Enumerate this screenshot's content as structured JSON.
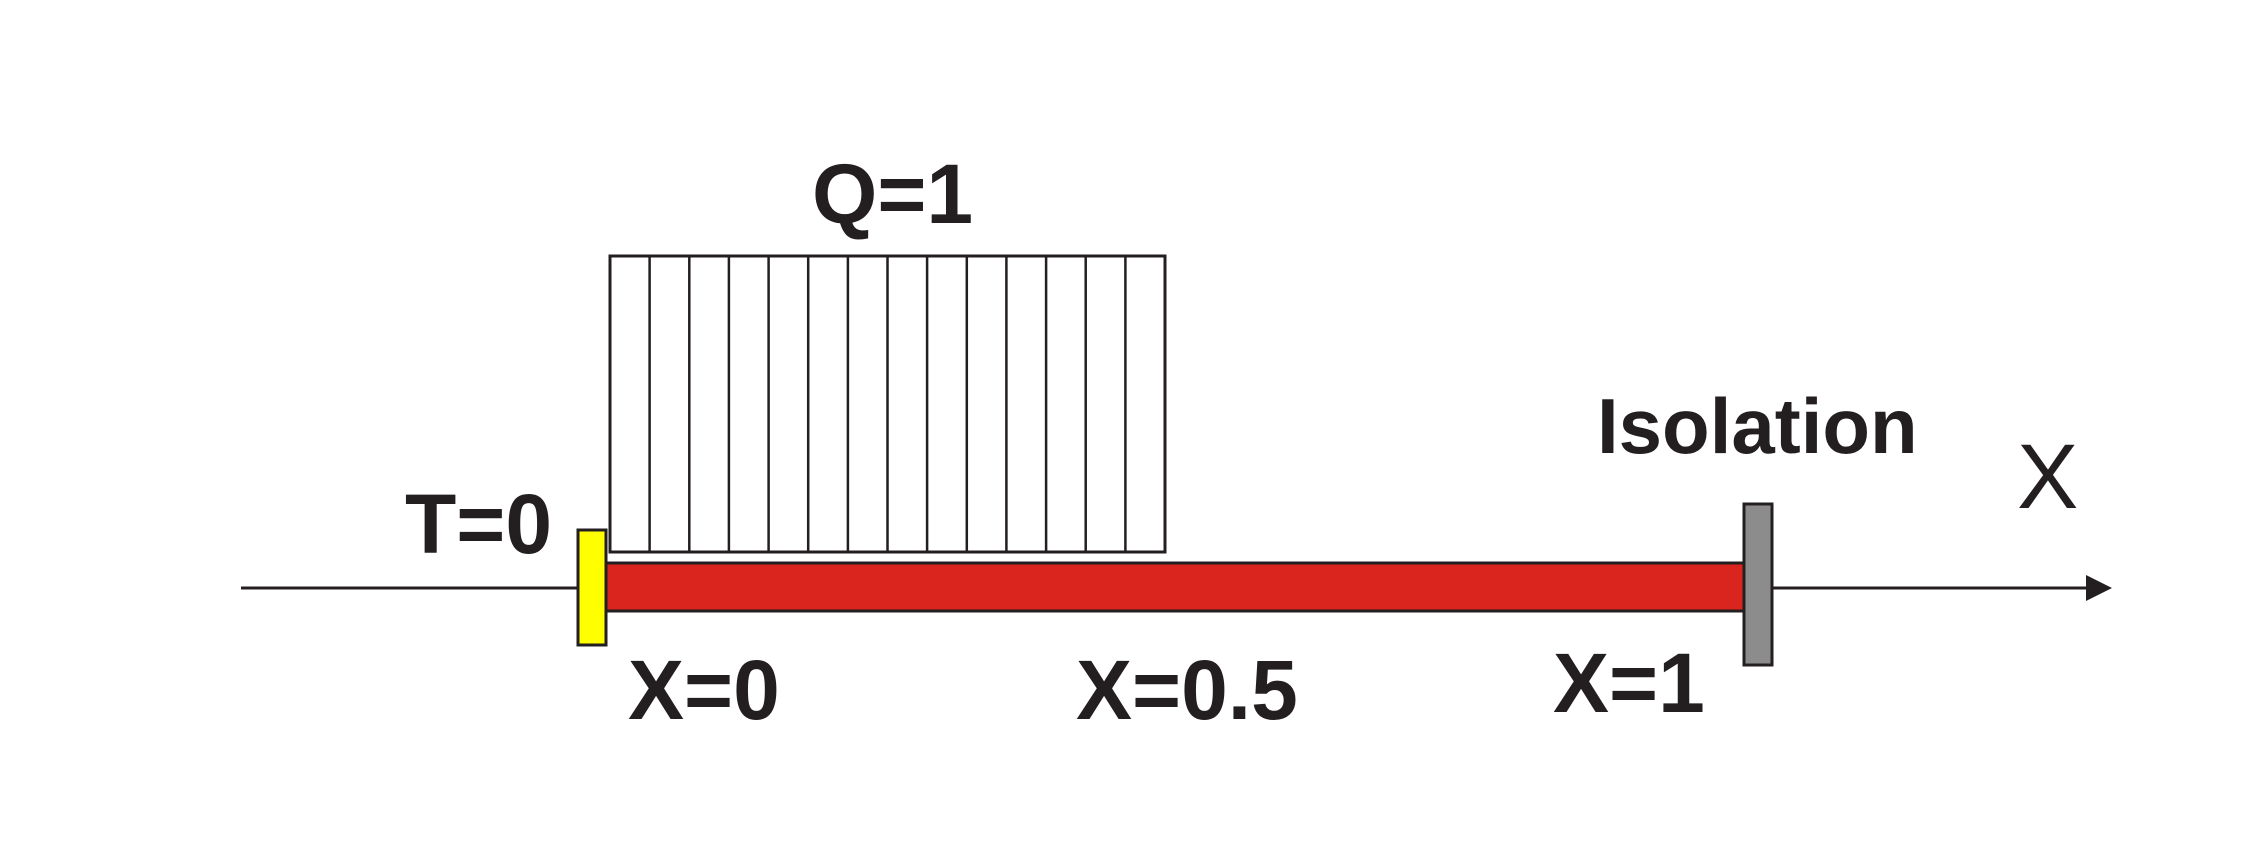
{
  "labels": {
    "heat_flux": "Q=1",
    "temperature": "T=0",
    "isolation": "Isolation",
    "axis": "X",
    "x_start": "X=0",
    "x_mid": "X=0.5",
    "x_end": "X=1"
  },
  "colors": {
    "rod": "#d9251d",
    "left_boundary": "#ffff00",
    "right_boundary": "#8c8c8c",
    "ink": "#231f20",
    "background": "#ffffff"
  },
  "heat_load": {
    "stripe_count": 14
  }
}
